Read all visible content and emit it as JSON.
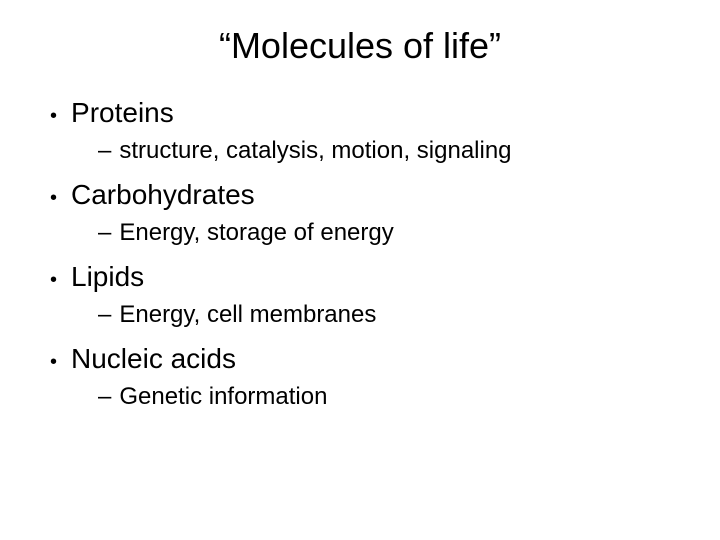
{
  "slide": {
    "title": "“Molecules of life”",
    "items": [
      {
        "label": "Proteins",
        "sub": "structure, catalysis, motion, signaling"
      },
      {
        "label": "Carbohydrates",
        "sub": "Energy, storage of energy"
      },
      {
        "label": "Lipids",
        "sub": "Energy, cell membranes"
      },
      {
        "label": "Nucleic acids",
        "sub": "Genetic information"
      }
    ],
    "colors": {
      "background": "#ffffff",
      "text": "#000000"
    },
    "typography": {
      "title_fontsize": 36,
      "main_fontsize": 28,
      "sub_fontsize": 24,
      "font_family": "Arial"
    }
  }
}
